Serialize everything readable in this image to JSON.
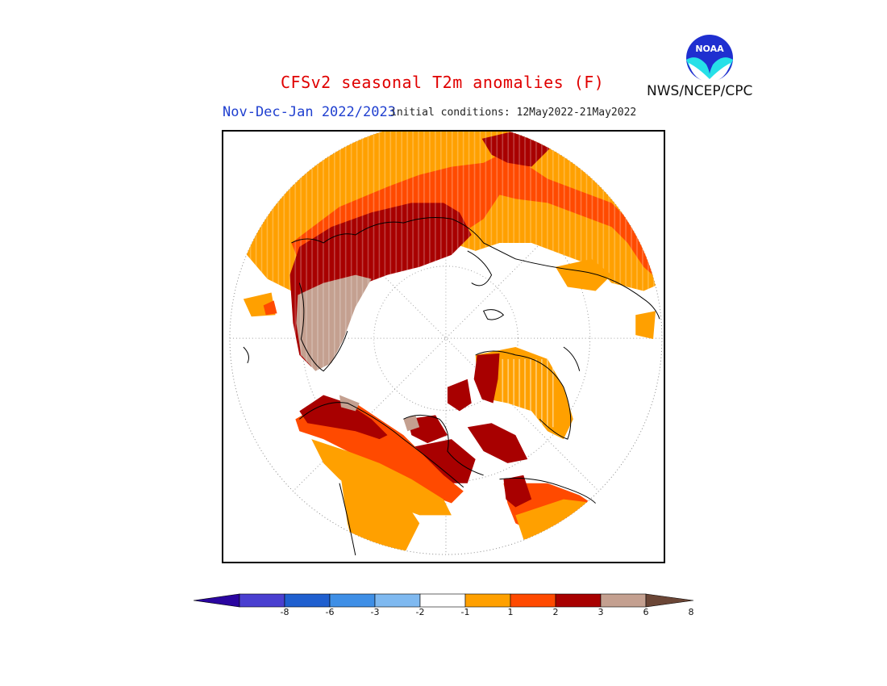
{
  "header": {
    "title": "CFSv2 seasonal T2m anomalies (F)",
    "period": "Nov-Dec-Jan 2022/2023",
    "initial_conditions": "initial conditions: 12May2022-21May2022",
    "agency": "NWS/NCEP/CPC",
    "logo_text": "NOAA"
  },
  "legend": {
    "tick_labels": [
      "-8",
      "-6",
      "-3",
      "-2",
      "-1",
      "1",
      "2",
      "3",
      "6",
      "8"
    ],
    "colors": [
      "#2a05a0",
      "#4a3fd0",
      "#1f5fcf",
      "#3f8fe6",
      "#7fb9f0",
      "#ffffff",
      "#ffa000",
      "#ff4a00",
      "#a80000",
      "#c4a090",
      "#6b4636"
    ]
  },
  "map": {
    "projection": "north polar stereographic",
    "color_scale": {
      "light": "#ffa000",
      "medium": "#ff4a00",
      "strong": "#a80000",
      "extreme": "#c4a090"
    }
  }
}
